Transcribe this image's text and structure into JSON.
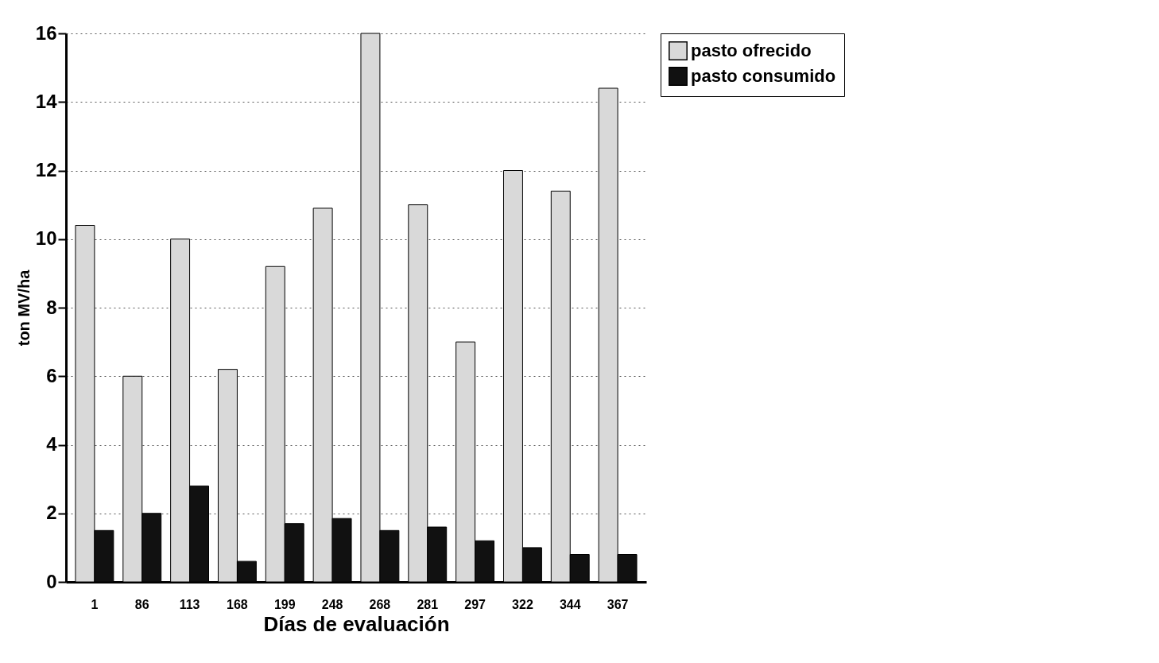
{
  "chart_data": {
    "type": "bar",
    "xlabel": "Días de evaluación",
    "ylabel": "ton MV/ha",
    "categories": [
      "1",
      "86",
      "113",
      "168",
      "199",
      "248",
      "268",
      "281",
      "297",
      "322",
      "344",
      "367"
    ],
    "series": [
      {
        "name": "pasto ofrecido",
        "color": "#d9d9d9",
        "values": [
          10.4,
          6.0,
          10.0,
          6.2,
          9.2,
          10.9,
          16.0,
          11.0,
          7.0,
          12.0,
          11.4,
          14.4
        ]
      },
      {
        "name": "pasto consumido",
        "color": "#111111",
        "values": [
          1.5,
          2.0,
          2.8,
          0.6,
          1.7,
          1.85,
          1.5,
          1.6,
          1.2,
          1.0,
          0.8,
          0.8
        ]
      }
    ],
    "ylim": [
      0,
      16
    ],
    "yticks": [
      0,
      2,
      4,
      6,
      8,
      10,
      12,
      14,
      16
    ],
    "grid": "y",
    "legend": "right"
  }
}
